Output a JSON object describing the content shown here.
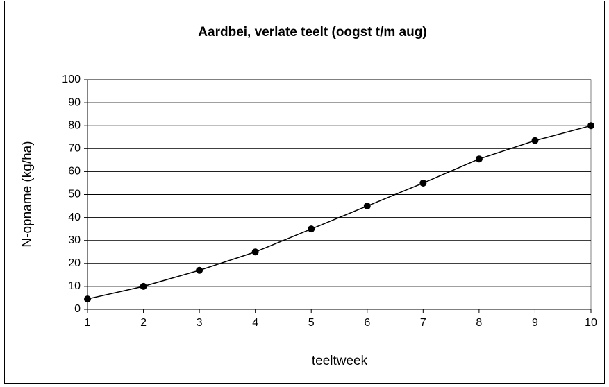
{
  "chart_data": {
    "type": "line",
    "title": "Aardbei, verlate teelt (oogst t/m aug)",
    "xlabel": "teeltweek",
    "ylabel": "N-opname (kg/ha)",
    "x": [
      1,
      2,
      3,
      4,
      5,
      6,
      7,
      8,
      9,
      10
    ],
    "series": [
      {
        "color": "#000000",
        "values": [
          4.5,
          10,
          17,
          25,
          35,
          45,
          55,
          65.5,
          73.5,
          80
        ]
      }
    ],
    "xlim": [
      1,
      10
    ],
    "xticks": [
      1,
      2,
      3,
      4,
      5,
      6,
      7,
      8,
      9,
      10
    ],
    "ylim": [
      0,
      100
    ],
    "yticks": [
      0,
      10,
      20,
      30,
      40,
      50,
      60,
      70,
      80,
      90,
      100
    ],
    "grid": true
  }
}
